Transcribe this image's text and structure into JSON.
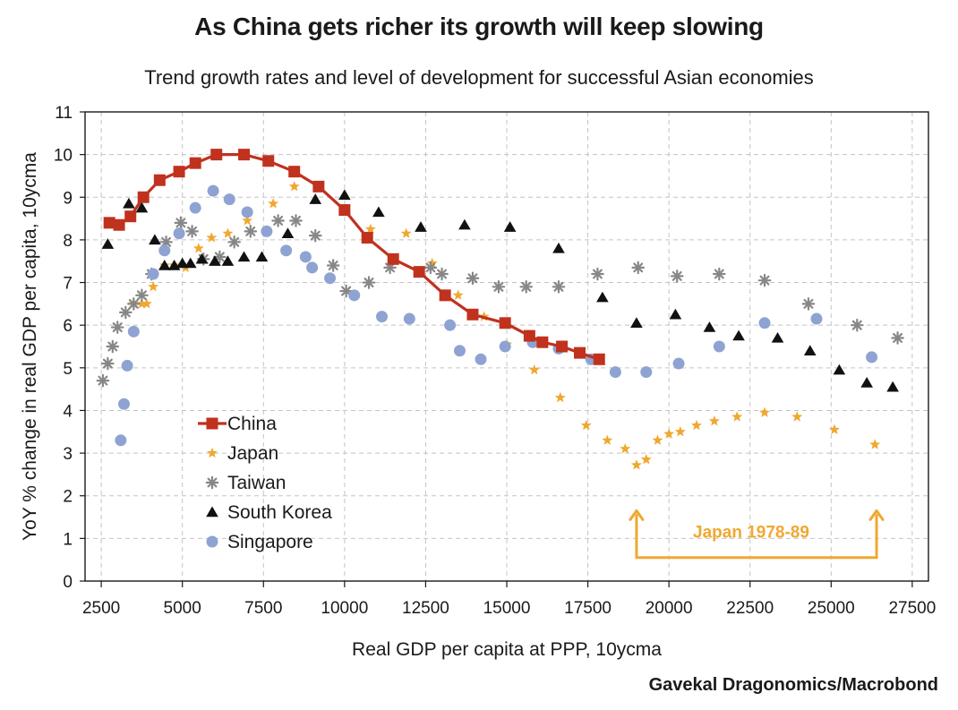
{
  "chart_data": {
    "type": "scatter",
    "title": "As China gets richer its growth will keep slowing",
    "subtitle": "Trend growth rates and level of development for successful Asian economies",
    "xlabel": "Real GDP per capita at PPP, 10ycma",
    "ylabel": "YoY % change in real GDP per capita, 10ycma",
    "source": "Gavekal Dragonomics/Macrobond",
    "xlim": [
      2000,
      28000
    ],
    "ylim": [
      0,
      11
    ],
    "x_ticks": [
      "2500",
      "5000",
      "7500",
      "10000",
      "12500",
      "15000",
      "17500",
      "20000",
      "22500",
      "25000",
      "27500"
    ],
    "y_ticks": [
      "0",
      "1",
      "2",
      "3",
      "4",
      "5",
      "6",
      "7",
      "8",
      "9",
      "10",
      "11"
    ],
    "grid": true,
    "legend_position": "lower-left",
    "series": [
      {
        "name": "China",
        "marker": "square-line",
        "color": "#c0321e",
        "points": [
          [
            2750,
            8.4
          ],
          [
            3050,
            8.35
          ],
          [
            3400,
            8.55
          ],
          [
            3800,
            9.0
          ],
          [
            4300,
            9.4
          ],
          [
            4900,
            9.6
          ],
          [
            5400,
            9.8
          ],
          [
            6050,
            10.0
          ],
          [
            6900,
            10.0
          ],
          [
            7650,
            9.85
          ],
          [
            8450,
            9.6
          ],
          [
            9200,
            9.25
          ],
          [
            10000,
            8.7
          ],
          [
            10700,
            8.05
          ],
          [
            11500,
            7.55
          ],
          [
            12300,
            7.25
          ],
          [
            13100,
            6.7
          ],
          [
            13950,
            6.25
          ],
          [
            14950,
            6.05
          ],
          [
            15700,
            5.75
          ],
          [
            16100,
            5.6
          ],
          [
            16700,
            5.5
          ],
          [
            17250,
            5.35
          ],
          [
            17850,
            5.2
          ]
        ]
      },
      {
        "name": "Japan",
        "marker": "star",
        "color": "#f0a830",
        "points": [
          [
            3500,
            6.5
          ],
          [
            3750,
            6.5
          ],
          [
            3900,
            6.5
          ],
          [
            4100,
            6.9
          ],
          [
            4450,
            7.4
          ],
          [
            4750,
            7.4
          ],
          [
            5100,
            7.35
          ],
          [
            5500,
            7.8
          ],
          [
            5900,
            8.05
          ],
          [
            6400,
            8.15
          ],
          [
            7000,
            8.45
          ],
          [
            7800,
            8.85
          ],
          [
            8450,
            9.25
          ],
          [
            10800,
            8.25
          ],
          [
            11900,
            8.15
          ],
          [
            12700,
            7.45
          ],
          [
            13500,
            6.7
          ],
          [
            14300,
            6.2
          ],
          [
            15000,
            5.55
          ],
          [
            15850,
            4.95
          ],
          [
            16650,
            4.3
          ],
          [
            17450,
            3.65
          ],
          [
            18100,
            3.3
          ],
          [
            18650,
            3.1
          ],
          [
            19000,
            2.72
          ],
          [
            19300,
            2.85
          ],
          [
            19650,
            3.3
          ],
          [
            20000,
            3.45
          ],
          [
            20350,
            3.5
          ],
          [
            20850,
            3.65
          ],
          [
            21400,
            3.75
          ],
          [
            22100,
            3.85
          ],
          [
            22950,
            3.95
          ],
          [
            23950,
            3.85
          ],
          [
            25100,
            3.55
          ],
          [
            26350,
            3.2
          ]
        ]
      },
      {
        "name": "Taiwan",
        "marker": "asterisk",
        "color": "#878787",
        "points": [
          [
            2550,
            4.7
          ],
          [
            2700,
            5.1
          ],
          [
            2850,
            5.5
          ],
          [
            3000,
            5.95
          ],
          [
            3250,
            6.3
          ],
          [
            3500,
            6.5
          ],
          [
            3750,
            6.7
          ],
          [
            4050,
            7.2
          ],
          [
            4500,
            7.95
          ],
          [
            4950,
            8.4
          ],
          [
            5300,
            8.2
          ],
          [
            5650,
            7.55
          ],
          [
            6150,
            7.6
          ],
          [
            6600,
            7.95
          ],
          [
            7100,
            8.2
          ],
          [
            7950,
            8.45
          ],
          [
            8500,
            8.45
          ],
          [
            9100,
            8.1
          ],
          [
            9650,
            7.4
          ],
          [
            10050,
            6.8
          ],
          [
            10750,
            7.0
          ],
          [
            11400,
            7.35
          ],
          [
            12650,
            7.35
          ],
          [
            13000,
            7.2
          ],
          [
            13950,
            7.1
          ],
          [
            14750,
            6.9
          ],
          [
            15600,
            6.9
          ],
          [
            16600,
            6.9
          ],
          [
            17800,
            7.2
          ],
          [
            19050,
            7.35
          ],
          [
            20250,
            7.15
          ],
          [
            21550,
            7.2
          ],
          [
            22950,
            7.05
          ],
          [
            24300,
            6.5
          ],
          [
            25800,
            6.0
          ],
          [
            27050,
            5.7
          ]
        ]
      },
      {
        "name": "South Korea",
        "marker": "triangle",
        "color": "#111111",
        "points": [
          [
            2700,
            7.9
          ],
          [
            3350,
            8.85
          ],
          [
            3750,
            8.75
          ],
          [
            4150,
            8.0
          ],
          [
            4450,
            7.4
          ],
          [
            4750,
            7.4
          ],
          [
            5000,
            7.45
          ],
          [
            5250,
            7.45
          ],
          [
            5600,
            7.55
          ],
          [
            6000,
            7.5
          ],
          [
            6400,
            7.5
          ],
          [
            6900,
            7.6
          ],
          [
            7450,
            7.6
          ],
          [
            8250,
            8.15
          ],
          [
            9100,
            8.95
          ],
          [
            10000,
            9.05
          ],
          [
            11050,
            8.65
          ],
          [
            12350,
            8.3
          ],
          [
            13700,
            8.35
          ],
          [
            15100,
            8.3
          ],
          [
            16600,
            7.8
          ],
          [
            17950,
            6.65
          ],
          [
            19000,
            6.05
          ],
          [
            20200,
            6.25
          ],
          [
            21250,
            5.95
          ],
          [
            22150,
            5.75
          ],
          [
            23350,
            5.7
          ],
          [
            24350,
            5.4
          ],
          [
            25250,
            4.95
          ],
          [
            26100,
            4.65
          ],
          [
            26900,
            4.55
          ]
        ]
      },
      {
        "name": "Singapore",
        "marker": "circle",
        "color": "#8ea3d2",
        "points": [
          [
            3100,
            3.3
          ],
          [
            3200,
            4.15
          ],
          [
            3300,
            5.05
          ],
          [
            3500,
            5.85
          ],
          [
            4100,
            7.2
          ],
          [
            4450,
            7.75
          ],
          [
            4900,
            8.15
          ],
          [
            5400,
            8.75
          ],
          [
            5950,
            9.15
          ],
          [
            6450,
            8.95
          ],
          [
            7000,
            8.65
          ],
          [
            7600,
            8.2
          ],
          [
            8200,
            7.75
          ],
          [
            8800,
            7.6
          ],
          [
            9000,
            7.35
          ],
          [
            9550,
            7.1
          ],
          [
            10300,
            6.7
          ],
          [
            11150,
            6.2
          ],
          [
            12000,
            6.15
          ],
          [
            13250,
            6.0
          ],
          [
            13550,
            5.4
          ],
          [
            14200,
            5.2
          ],
          [
            14950,
            5.5
          ],
          [
            15800,
            5.6
          ],
          [
            16600,
            5.45
          ],
          [
            17600,
            5.2
          ],
          [
            18350,
            4.9
          ],
          [
            19300,
            4.9
          ],
          [
            20300,
            5.1
          ],
          [
            21550,
            5.5
          ],
          [
            22950,
            6.05
          ],
          [
            24550,
            6.15
          ],
          [
            26250,
            5.25
          ]
        ]
      }
    ],
    "annotations": [
      {
        "text": "Japan 1978-89",
        "color": "#f0a830",
        "x_from": 19000,
        "x_to": 26400,
        "y_base": 0.55,
        "y_top": 1.65
      }
    ]
  }
}
